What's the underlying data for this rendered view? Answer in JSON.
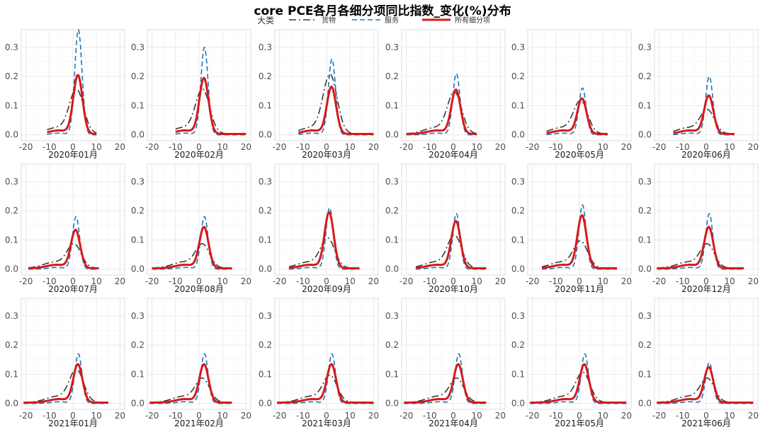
{
  "title": "core PCE各月各细分项同比指数_变化(%)分布",
  "legend": {
    "title": "大类",
    "items": [
      {
        "name": "货物",
        "color": "#3a3a3a",
        "dash": "longdash"
      },
      {
        "name": "服务",
        "color": "#1f77b4",
        "dash": "dash"
      },
      {
        "name": "所有细分项",
        "color": "#d7191c",
        "dash": "solid"
      }
    ]
  },
  "chart_data": {
    "type": "line",
    "facet_layout": {
      "rows": 3,
      "cols": 6
    },
    "xlim": [
      -22,
      22
    ],
    "ylim": [
      -0.02,
      0.36
    ],
    "x_ticks": [
      -20,
      -10,
      0,
      10,
      20
    ],
    "y_ticks": [
      0.0,
      0.1,
      0.2,
      0.3
    ],
    "y_tick_labels": [
      "0.0",
      "0.1",
      "0.2",
      "0.3"
    ],
    "series_names": [
      "货物",
      "服务",
      "所有细分项"
    ],
    "panels": [
      {
        "label": "2020年01月",
        "xr": [
          -11,
          10
        ],
        "peaks": {
          "goods": 0.15,
          "services": 0.36,
          "all": 0.2
        },
        "center": 2
      },
      {
        "label": "2020年02月",
        "xr": [
          -10,
          20
        ],
        "peaks": {
          "goods": 0.15,
          "services": 0.3,
          "all": 0.19
        },
        "center": 2
      },
      {
        "label": "2020年03月",
        "xr": [
          -12,
          20
        ],
        "peaks": {
          "goods": 0.2,
          "services": 0.26,
          "all": 0.16
        },
        "center": 2
      },
      {
        "label": "2020年04月",
        "xr": [
          -20,
          10
        ],
        "peaks": {
          "goods": 0.14,
          "services": 0.21,
          "all": 0.15
        },
        "center": 1
      },
      {
        "label": "2020年05月",
        "xr": [
          -14,
          12
        ],
        "peaks": {
          "goods": 0.11,
          "services": 0.16,
          "all": 0.12
        },
        "center": 1
      },
      {
        "label": "2020年06月",
        "xr": [
          -14,
          12
        ],
        "peaks": {
          "goods": 0.08,
          "services": 0.2,
          "all": 0.13
        },
        "center": 1
      },
      {
        "label": "2020年07月",
        "xr": [
          -19,
          11
        ],
        "peaks": {
          "goods": 0.08,
          "services": 0.18,
          "all": 0.13
        },
        "center": 1
      },
      {
        "label": "2020年08月",
        "xr": [
          -20,
          14
        ],
        "peaks": {
          "goods": 0.08,
          "services": 0.18,
          "all": 0.14
        },
        "center": 2
      },
      {
        "label": "2020年09月",
        "xr": [
          -16,
          14
        ],
        "peaks": {
          "goods": 0.1,
          "services": 0.21,
          "all": 0.19
        },
        "center": 1
      },
      {
        "label": "2020年10月",
        "xr": [
          -16,
          14
        ],
        "peaks": {
          "goods": 0.11,
          "services": 0.19,
          "all": 0.16
        },
        "center": 1
      },
      {
        "label": "2020年11月",
        "xr": [
          -16,
          16
        ],
        "peaks": {
          "goods": 0.09,
          "services": 0.22,
          "all": 0.18
        },
        "center": 1
      },
      {
        "label": "2020年12月",
        "xr": [
          -21,
          16
        ],
        "peaks": {
          "goods": 0.08,
          "services": 0.19,
          "all": 0.14
        },
        "center": 1
      },
      {
        "label": "2021年01月",
        "xr": [
          -21,
          15
        ],
        "peaks": {
          "goods": 0.11,
          "services": 0.17,
          "all": 0.13
        },
        "center": 2
      },
      {
        "label": "2021年02月",
        "xr": [
          -21,
          14
        ],
        "peaks": {
          "goods": 0.08,
          "services": 0.17,
          "all": 0.13
        },
        "center": 2
      },
      {
        "label": "2021年03月",
        "xr": [
          -21,
          20
        ],
        "peaks": {
          "goods": 0.09,
          "services": 0.17,
          "all": 0.13
        },
        "center": 2
      },
      {
        "label": "2021年04月",
        "xr": [
          -21,
          14
        ],
        "peaks": {
          "goods": 0.08,
          "services": 0.17,
          "all": 0.13
        },
        "center": 2
      },
      {
        "label": "2021年05月",
        "xr": [
          -21,
          20
        ],
        "peaks": {
          "goods": 0.1,
          "services": 0.17,
          "all": 0.13
        },
        "center": 2
      },
      {
        "label": "2021年06月",
        "xr": [
          -21,
          20
        ],
        "peaks": {
          "goods": 0.08,
          "services": 0.14,
          "all": 0.12
        },
        "center": 1
      }
    ]
  }
}
